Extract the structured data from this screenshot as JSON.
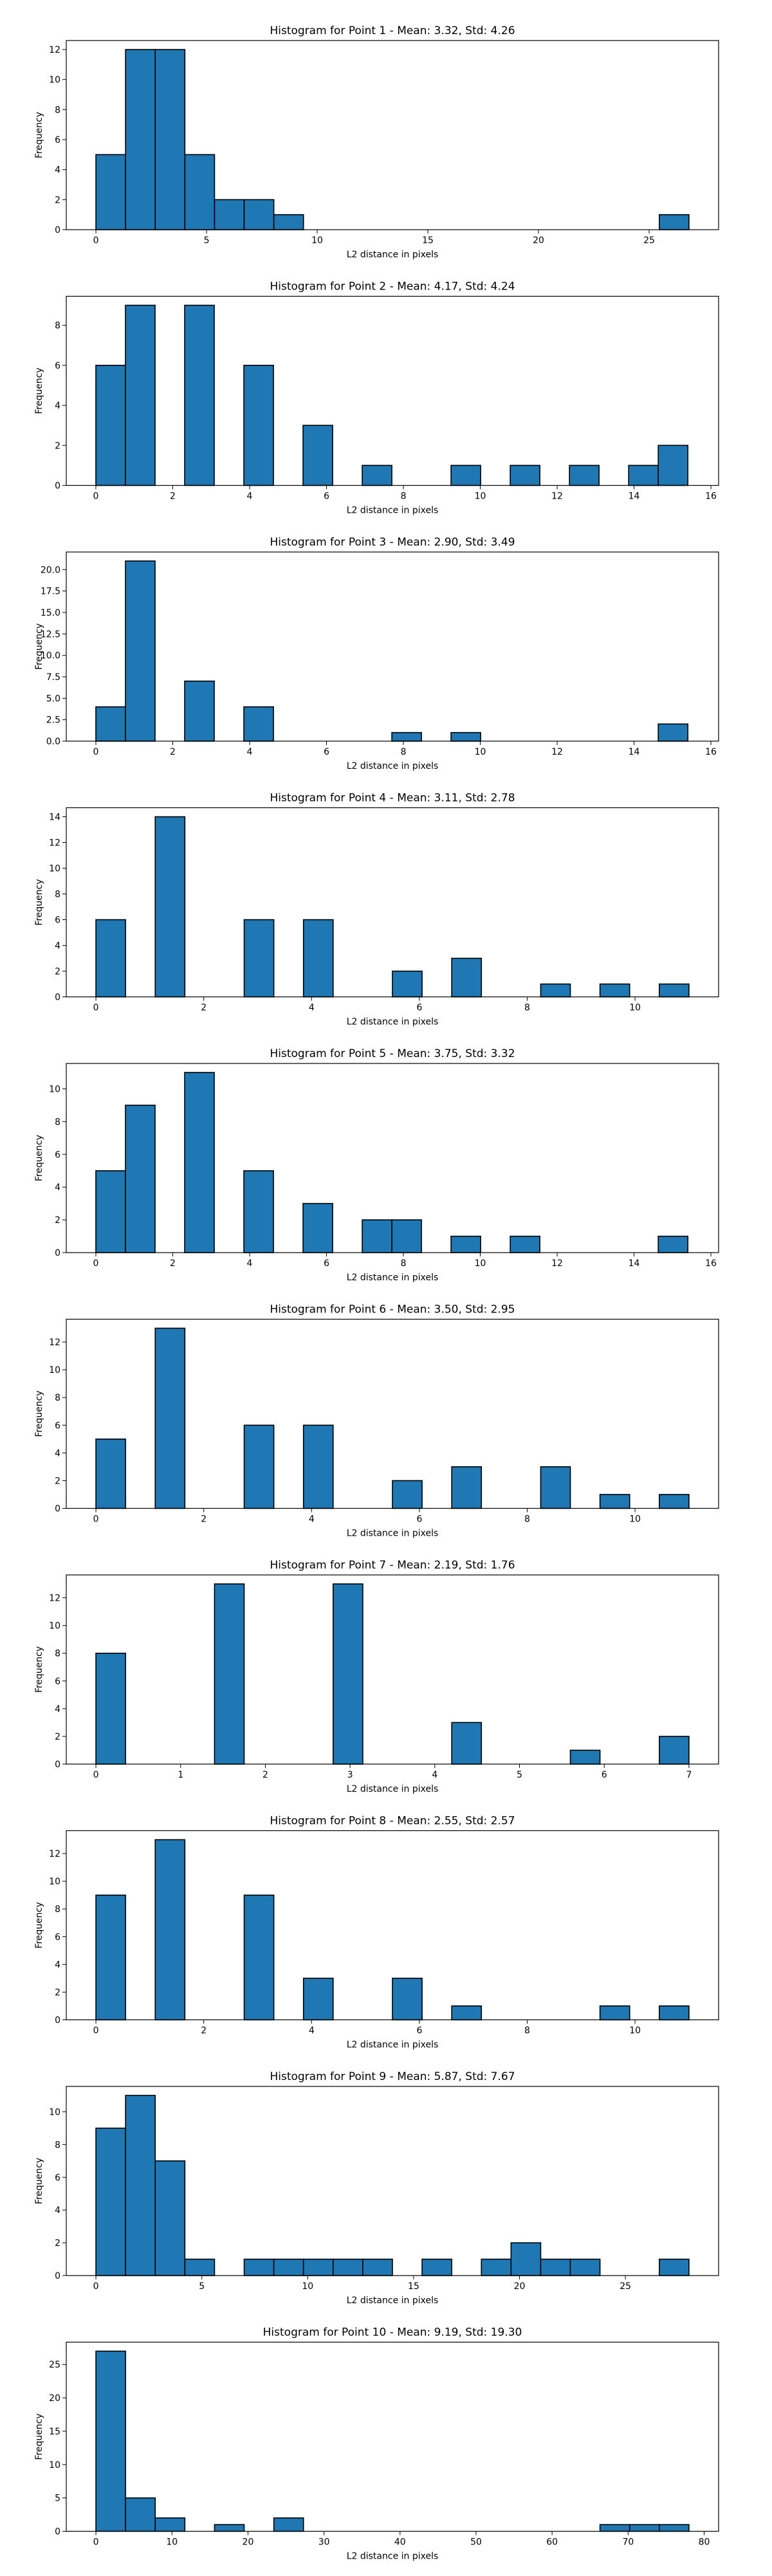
{
  "chart_data": [
    {
      "type": "bar",
      "title": "Histogram for Point 1 - Mean: 3.32, Std: 4.26",
      "xlabel": "L2 distance in pixels",
      "ylabel": "Frequency",
      "xlim": [
        -1.34,
        28.14
      ],
      "ylim": [
        0,
        12.6
      ],
      "xticks": [
        0,
        5,
        10,
        15,
        20,
        25
      ],
      "xtick_labels": [
        "0",
        "5",
        "10",
        "15",
        "20",
        "25"
      ],
      "yticks": [
        0,
        2,
        4,
        6,
        8,
        10,
        12
      ],
      "ytick_labels": [
        "0",
        "2",
        "4",
        "6",
        "8",
        "10",
        "12"
      ],
      "bins": [
        [
          0.0,
          1.34
        ],
        [
          1.34,
          2.68
        ],
        [
          2.68,
          4.02
        ],
        [
          4.02,
          5.36
        ],
        [
          5.36,
          6.7
        ],
        [
          6.7,
          8.04
        ],
        [
          8.04,
          9.38
        ],
        [
          25.46,
          26.8
        ]
      ],
      "values": [
        5,
        12,
        12,
        5,
        2,
        2,
        1,
        1
      ],
      "bar_color": "#1f77b4",
      "edge_color": "#000000"
    },
    {
      "type": "bar",
      "title": "Histogram for Point 2 - Mean: 4.17, Std: 4.24",
      "xlabel": "L2 distance in pixels",
      "ylabel": "Frequency",
      "xlim": [
        -0.77,
        16.2
      ],
      "ylim": [
        0,
        9.45
      ],
      "xticks": [
        0,
        2,
        4,
        6,
        8,
        10,
        12,
        14,
        16
      ],
      "xtick_labels": [
        "0",
        "2",
        "4",
        "6",
        "8",
        "10",
        "12",
        "14",
        "16"
      ],
      "yticks": [
        0,
        2,
        4,
        6,
        8
      ],
      "ytick_labels": [
        "0",
        "2",
        "4",
        "6",
        "8"
      ],
      "bins": [
        [
          0.0,
          0.77
        ],
        [
          0.77,
          1.54
        ],
        [
          2.31,
          3.08
        ],
        [
          3.85,
          4.62
        ],
        [
          5.39,
          6.16
        ],
        [
          6.93,
          7.7
        ],
        [
          9.24,
          10.01
        ],
        [
          10.78,
          11.55
        ],
        [
          12.32,
          13.09
        ],
        [
          13.86,
          14.63
        ],
        [
          14.63,
          15.4
        ]
      ],
      "values": [
        6,
        9,
        9,
        6,
        3,
        1,
        1,
        1,
        1,
        1,
        2
      ],
      "bar_color": "#1f77b4",
      "edge_color": "#000000"
    },
    {
      "type": "bar",
      "title": "Histogram for Point 3 - Mean: 2.90, Std: 3.49",
      "xlabel": "L2 distance in pixels",
      "ylabel": "Frequency",
      "xlim": [
        -0.77,
        16.2
      ],
      "ylim": [
        0,
        22.05
      ],
      "xticks": [
        0,
        2,
        4,
        6,
        8,
        10,
        12,
        14,
        16
      ],
      "xtick_labels": [
        "0",
        "2",
        "4",
        "6",
        "8",
        "10",
        "12",
        "14",
        "16"
      ],
      "yticks": [
        0,
        2.5,
        5,
        7.5,
        10,
        12.5,
        15,
        17.5,
        20
      ],
      "ytick_labels": [
        "0.0",
        "2.5",
        "5.0",
        "7.5",
        "10.0",
        "12.5",
        "15.0",
        "17.5",
        "20.0"
      ],
      "bins": [
        [
          0.0,
          0.77
        ],
        [
          0.77,
          1.54
        ],
        [
          2.31,
          3.08
        ],
        [
          3.85,
          4.62
        ],
        [
          7.7,
          8.47
        ],
        [
          9.24,
          10.01
        ],
        [
          14.63,
          15.4
        ]
      ],
      "values": [
        4,
        21,
        7,
        4,
        1,
        1,
        2
      ],
      "bar_color": "#1f77b4",
      "edge_color": "#000000"
    },
    {
      "type": "bar",
      "title": "Histogram for Point 4 - Mean: 3.11, Std: 2.78",
      "xlabel": "L2 distance in pixels",
      "ylabel": "Frequency",
      "xlim": [
        -0.55,
        11.55
      ],
      "ylim": [
        0,
        14.7
      ],
      "xticks": [
        0,
        2,
        4,
        6,
        8,
        10
      ],
      "xtick_labels": [
        "0",
        "2",
        "4",
        "6",
        "8",
        "10"
      ],
      "yticks": [
        0,
        2,
        4,
        6,
        8,
        10,
        12,
        14
      ],
      "ytick_labels": [
        "0",
        "2",
        "4",
        "6",
        "8",
        "10",
        "12",
        "14"
      ],
      "bins": [
        [
          0.0,
          0.55
        ],
        [
          1.1,
          1.65
        ],
        [
          2.75,
          3.3
        ],
        [
          3.85,
          4.4
        ],
        [
          5.5,
          6.05
        ],
        [
          6.6,
          7.15
        ],
        [
          8.25,
          8.8
        ],
        [
          9.35,
          9.9
        ],
        [
          10.45,
          11.0
        ]
      ],
      "values": [
        6,
        14,
        6,
        6,
        2,
        3,
        1,
        1,
        1
      ],
      "bar_color": "#1f77b4",
      "edge_color": "#000000"
    },
    {
      "type": "bar",
      "title": "Histogram for Point 5 - Mean: 3.75, Std: 3.32",
      "xlabel": "L2 distance in pixels",
      "ylabel": "Frequency",
      "xlim": [
        -0.77,
        16.2
      ],
      "ylim": [
        0,
        11.55
      ],
      "xticks": [
        0,
        2,
        4,
        6,
        8,
        10,
        12,
        14,
        16
      ],
      "xtick_labels": [
        "0",
        "2",
        "4",
        "6",
        "8",
        "10",
        "12",
        "14",
        "16"
      ],
      "yticks": [
        0,
        2,
        4,
        6,
        8,
        10
      ],
      "ytick_labels": [
        "0",
        "2",
        "4",
        "6",
        "8",
        "10"
      ],
      "bins": [
        [
          0.0,
          0.77
        ],
        [
          0.77,
          1.54
        ],
        [
          2.31,
          3.08
        ],
        [
          3.85,
          4.62
        ],
        [
          5.39,
          6.16
        ],
        [
          6.93,
          7.7
        ],
        [
          7.7,
          8.47
        ],
        [
          9.24,
          10.01
        ],
        [
          10.78,
          11.55
        ],
        [
          14.63,
          15.4
        ]
      ],
      "values": [
        5,
        9,
        11,
        5,
        3,
        2,
        2,
        1,
        1,
        1
      ],
      "bar_color": "#1f77b4",
      "edge_color": "#000000"
    },
    {
      "type": "bar",
      "title": "Histogram for Point 6 - Mean: 3.50, Std: 2.95",
      "xlabel": "L2 distance in pixels",
      "ylabel": "Frequency",
      "xlim": [
        -0.55,
        11.55
      ],
      "ylim": [
        0,
        13.65
      ],
      "xticks": [
        0,
        2,
        4,
        6,
        8,
        10
      ],
      "xtick_labels": [
        "0",
        "2",
        "4",
        "6",
        "8",
        "10"
      ],
      "yticks": [
        0,
        2,
        4,
        6,
        8,
        10,
        12
      ],
      "ytick_labels": [
        "0",
        "2",
        "4",
        "6",
        "8",
        "10",
        "12"
      ],
      "bins": [
        [
          0.0,
          0.55
        ],
        [
          1.1,
          1.65
        ],
        [
          2.75,
          3.3
        ],
        [
          3.85,
          4.4
        ],
        [
          5.5,
          6.05
        ],
        [
          6.6,
          7.15
        ],
        [
          8.25,
          8.8
        ],
        [
          9.35,
          9.9
        ],
        [
          10.45,
          11.0
        ]
      ],
      "values": [
        5,
        13,
        6,
        6,
        2,
        3,
        3,
        1,
        1
      ],
      "bar_color": "#1f77b4",
      "edge_color": "#000000"
    },
    {
      "type": "bar",
      "title": "Histogram for Point 7 - Mean: 2.19, Std: 1.76",
      "xlabel": "L2 distance in pixels",
      "ylabel": "Frequency",
      "xlim": [
        -0.35,
        7.35
      ],
      "ylim": [
        0,
        13.65
      ],
      "xticks": [
        0,
        1,
        2,
        3,
        4,
        5,
        6,
        7
      ],
      "xtick_labels": [
        "0",
        "1",
        "2",
        "3",
        "4",
        "5",
        "6",
        "7"
      ],
      "yticks": [
        0,
        2,
        4,
        6,
        8,
        10,
        12
      ],
      "ytick_labels": [
        "0",
        "2",
        "4",
        "6",
        "8",
        "10",
        "12"
      ],
      "bins": [
        [
          0.0,
          0.35
        ],
        [
          1.4,
          1.75
        ],
        [
          2.8,
          3.15
        ],
        [
          4.2,
          4.55
        ],
        [
          5.6,
          5.95
        ],
        [
          6.65,
          7.0
        ]
      ],
      "values": [
        8,
        13,
        13,
        3,
        1,
        2
      ],
      "bar_color": "#1f77b4",
      "edge_color": "#000000"
    },
    {
      "type": "bar",
      "title": "Histogram for Point 8 - Mean: 2.55, Std: 2.57",
      "xlabel": "L2 distance in pixels",
      "ylabel": "Frequency",
      "xlim": [
        -0.55,
        11.55
      ],
      "ylim": [
        0,
        13.65
      ],
      "xticks": [
        0,
        2,
        4,
        6,
        8,
        10
      ],
      "xtick_labels": [
        "0",
        "2",
        "4",
        "6",
        "8",
        "10"
      ],
      "yticks": [
        0,
        2,
        4,
        6,
        8,
        10,
        12
      ],
      "ytick_labels": [
        "0",
        "2",
        "4",
        "6",
        "8",
        "10",
        "12"
      ],
      "bins": [
        [
          0.0,
          0.55
        ],
        [
          1.1,
          1.65
        ],
        [
          2.75,
          3.3
        ],
        [
          3.85,
          4.4
        ],
        [
          5.5,
          6.05
        ],
        [
          6.6,
          7.15
        ],
        [
          9.35,
          9.9
        ],
        [
          10.45,
          11.0
        ]
      ],
      "values": [
        9,
        13,
        9,
        3,
        3,
        1,
        1,
        1
      ],
      "bar_color": "#1f77b4",
      "edge_color": "#000000"
    },
    {
      "type": "bar",
      "title": "Histogram for Point 9 - Mean: 5.87, Std: 7.67",
      "xlabel": "L2 distance in pixels",
      "ylabel": "Frequency",
      "xlim": [
        -1.4,
        29.4
      ],
      "ylim": [
        0,
        11.55
      ],
      "xticks": [
        0,
        5,
        10,
        15,
        20,
        25
      ],
      "xtick_labels": [
        "0",
        "5",
        "10",
        "15",
        "20",
        "25"
      ],
      "yticks": [
        0,
        2,
        4,
        6,
        8,
        10
      ],
      "ytick_labels": [
        "0",
        "2",
        "4",
        "6",
        "8",
        "10"
      ],
      "bins": [
        [
          0.0,
          1.4
        ],
        [
          1.4,
          2.8
        ],
        [
          2.8,
          4.2
        ],
        [
          4.2,
          5.6
        ],
        [
          7.0,
          8.4
        ],
        [
          8.4,
          9.8
        ],
        [
          9.8,
          11.2
        ],
        [
          11.2,
          12.6
        ],
        [
          12.6,
          14.0
        ],
        [
          15.4,
          16.8
        ],
        [
          18.2,
          19.6
        ],
        [
          19.6,
          21.0
        ],
        [
          21.0,
          22.4
        ],
        [
          22.4,
          23.8
        ],
        [
          26.6,
          28.0
        ]
      ],
      "values": [
        9,
        11,
        7,
        1,
        1,
        1,
        1,
        1,
        1,
        1,
        1,
        2,
        1,
        1,
        1
      ],
      "bar_color": "#1f77b4",
      "edge_color": "#000000"
    },
    {
      "type": "bar",
      "title": "Histogram for Point 10 - Mean: 9.19, Std: 19.30",
      "xlabel": "L2 distance in pixels",
      "ylabel": "Frequency",
      "xlim": [
        -3.9,
        81.9
      ],
      "ylim": [
        0,
        28.35
      ],
      "xticks": [
        0,
        10,
        20,
        30,
        40,
        50,
        60,
        70,
        80
      ],
      "xtick_labels": [
        "0",
        "10",
        "20",
        "30",
        "40",
        "50",
        "60",
        "70",
        "80"
      ],
      "yticks": [
        0,
        5,
        10,
        15,
        20,
        25
      ],
      "ytick_labels": [
        "0",
        "5",
        "10",
        "15",
        "20",
        "25"
      ],
      "bins": [
        [
          0.0,
          3.9
        ],
        [
          3.9,
          7.8
        ],
        [
          7.8,
          11.7
        ],
        [
          15.6,
          19.5
        ],
        [
          23.4,
          27.3
        ],
        [
          66.3,
          70.2
        ],
        [
          70.2,
          74.1
        ],
        [
          74.1,
          78.0
        ]
      ],
      "values": [
        27,
        5,
        2,
        1,
        2,
        1,
        1,
        1
      ],
      "bar_color": "#1f77b4",
      "edge_color": "#000000"
    }
  ]
}
